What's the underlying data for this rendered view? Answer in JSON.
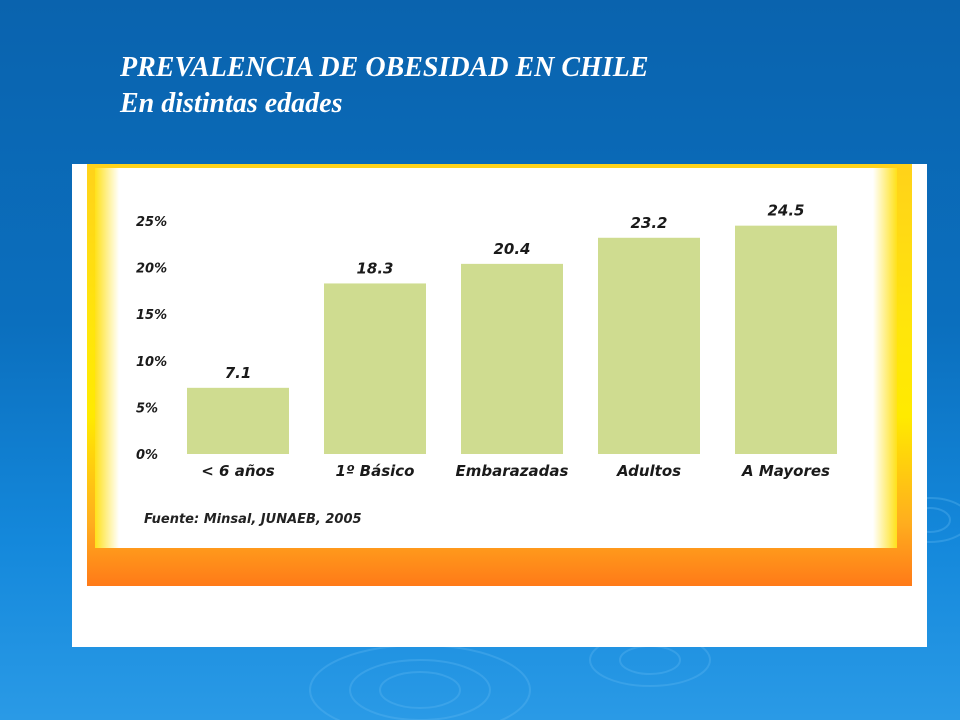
{
  "slide": {
    "title_line1": "PREVALENCIA DE OBESIDAD EN CHILE",
    "title_line2": "En distintas edades"
  },
  "source": "Fuente: Minsal, JUNAEB, 2005",
  "colors": {
    "bar": "#cfdc90",
    "background": "#0b6fbe",
    "frame": "#ffe600"
  },
  "chart_data": {
    "type": "bar",
    "categories": [
      "< 6 años",
      "1º Básico",
      "Embarazadas",
      "Adultos",
      "A Mayores"
    ],
    "values": [
      7.1,
      18.3,
      20.4,
      23.2,
      24.5
    ],
    "data_labels": [
      "7.1",
      "18.3",
      "20.4",
      "23.2",
      "24.5"
    ],
    "y_ticks": [
      "0%",
      "5%",
      "10%",
      "15%",
      "20%",
      "25%"
    ],
    "ylim": [
      0,
      25
    ],
    "grid": false,
    "legend": "none"
  }
}
